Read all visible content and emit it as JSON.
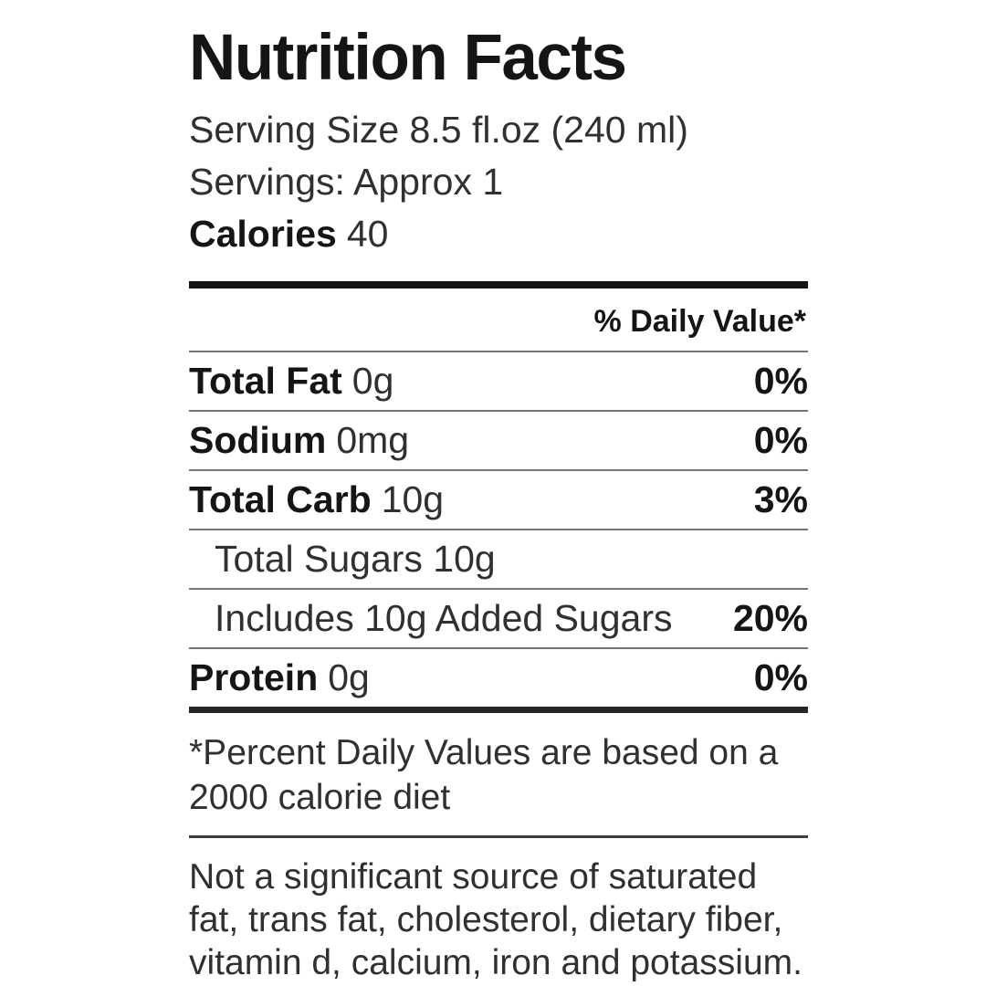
{
  "label": {
    "title": "Nutrition Facts",
    "serving_size": "Serving Size 8.5 fl.oz (240 ml)",
    "servings": "Servings: Approx 1",
    "calories_label": "Calories",
    "calories_value": "40",
    "table": {
      "daily_value_header": "% Daily Value*",
      "rows": [
        {
          "bold": "Total Fat",
          "rest": "0g",
          "dv": "0%",
          "indent": false
        },
        {
          "bold": "Sodium",
          "rest": "0mg",
          "dv": "0%",
          "indent": false
        },
        {
          "bold": "Total Carb",
          "rest": "10g",
          "dv": "3%",
          "indent": false
        },
        {
          "bold": "",
          "rest": "Total Sugars 10g",
          "dv": "",
          "indent": true
        },
        {
          "bold": "",
          "rest": "Includes 10g Added Sugars",
          "dv": "20%",
          "indent": true
        },
        {
          "bold": "Protein",
          "rest": "0g",
          "dv": "0%",
          "indent": false
        }
      ]
    },
    "footnote": "*Percent Daily Values are based on a\n2000 calorie diet",
    "disclaimer": "Not a significant source of saturated\nfat, trans fat, cholesterol, dietary fiber,\nvitamin d, calcium, iron and potassium."
  },
  "colors": {
    "ink": "#151515",
    "ink_secondary": "#262626",
    "body_ink": "#303030",
    "thin_rule": "#777777",
    "mid_rule": "#3f3f3f",
    "background": "#ffffff"
  }
}
